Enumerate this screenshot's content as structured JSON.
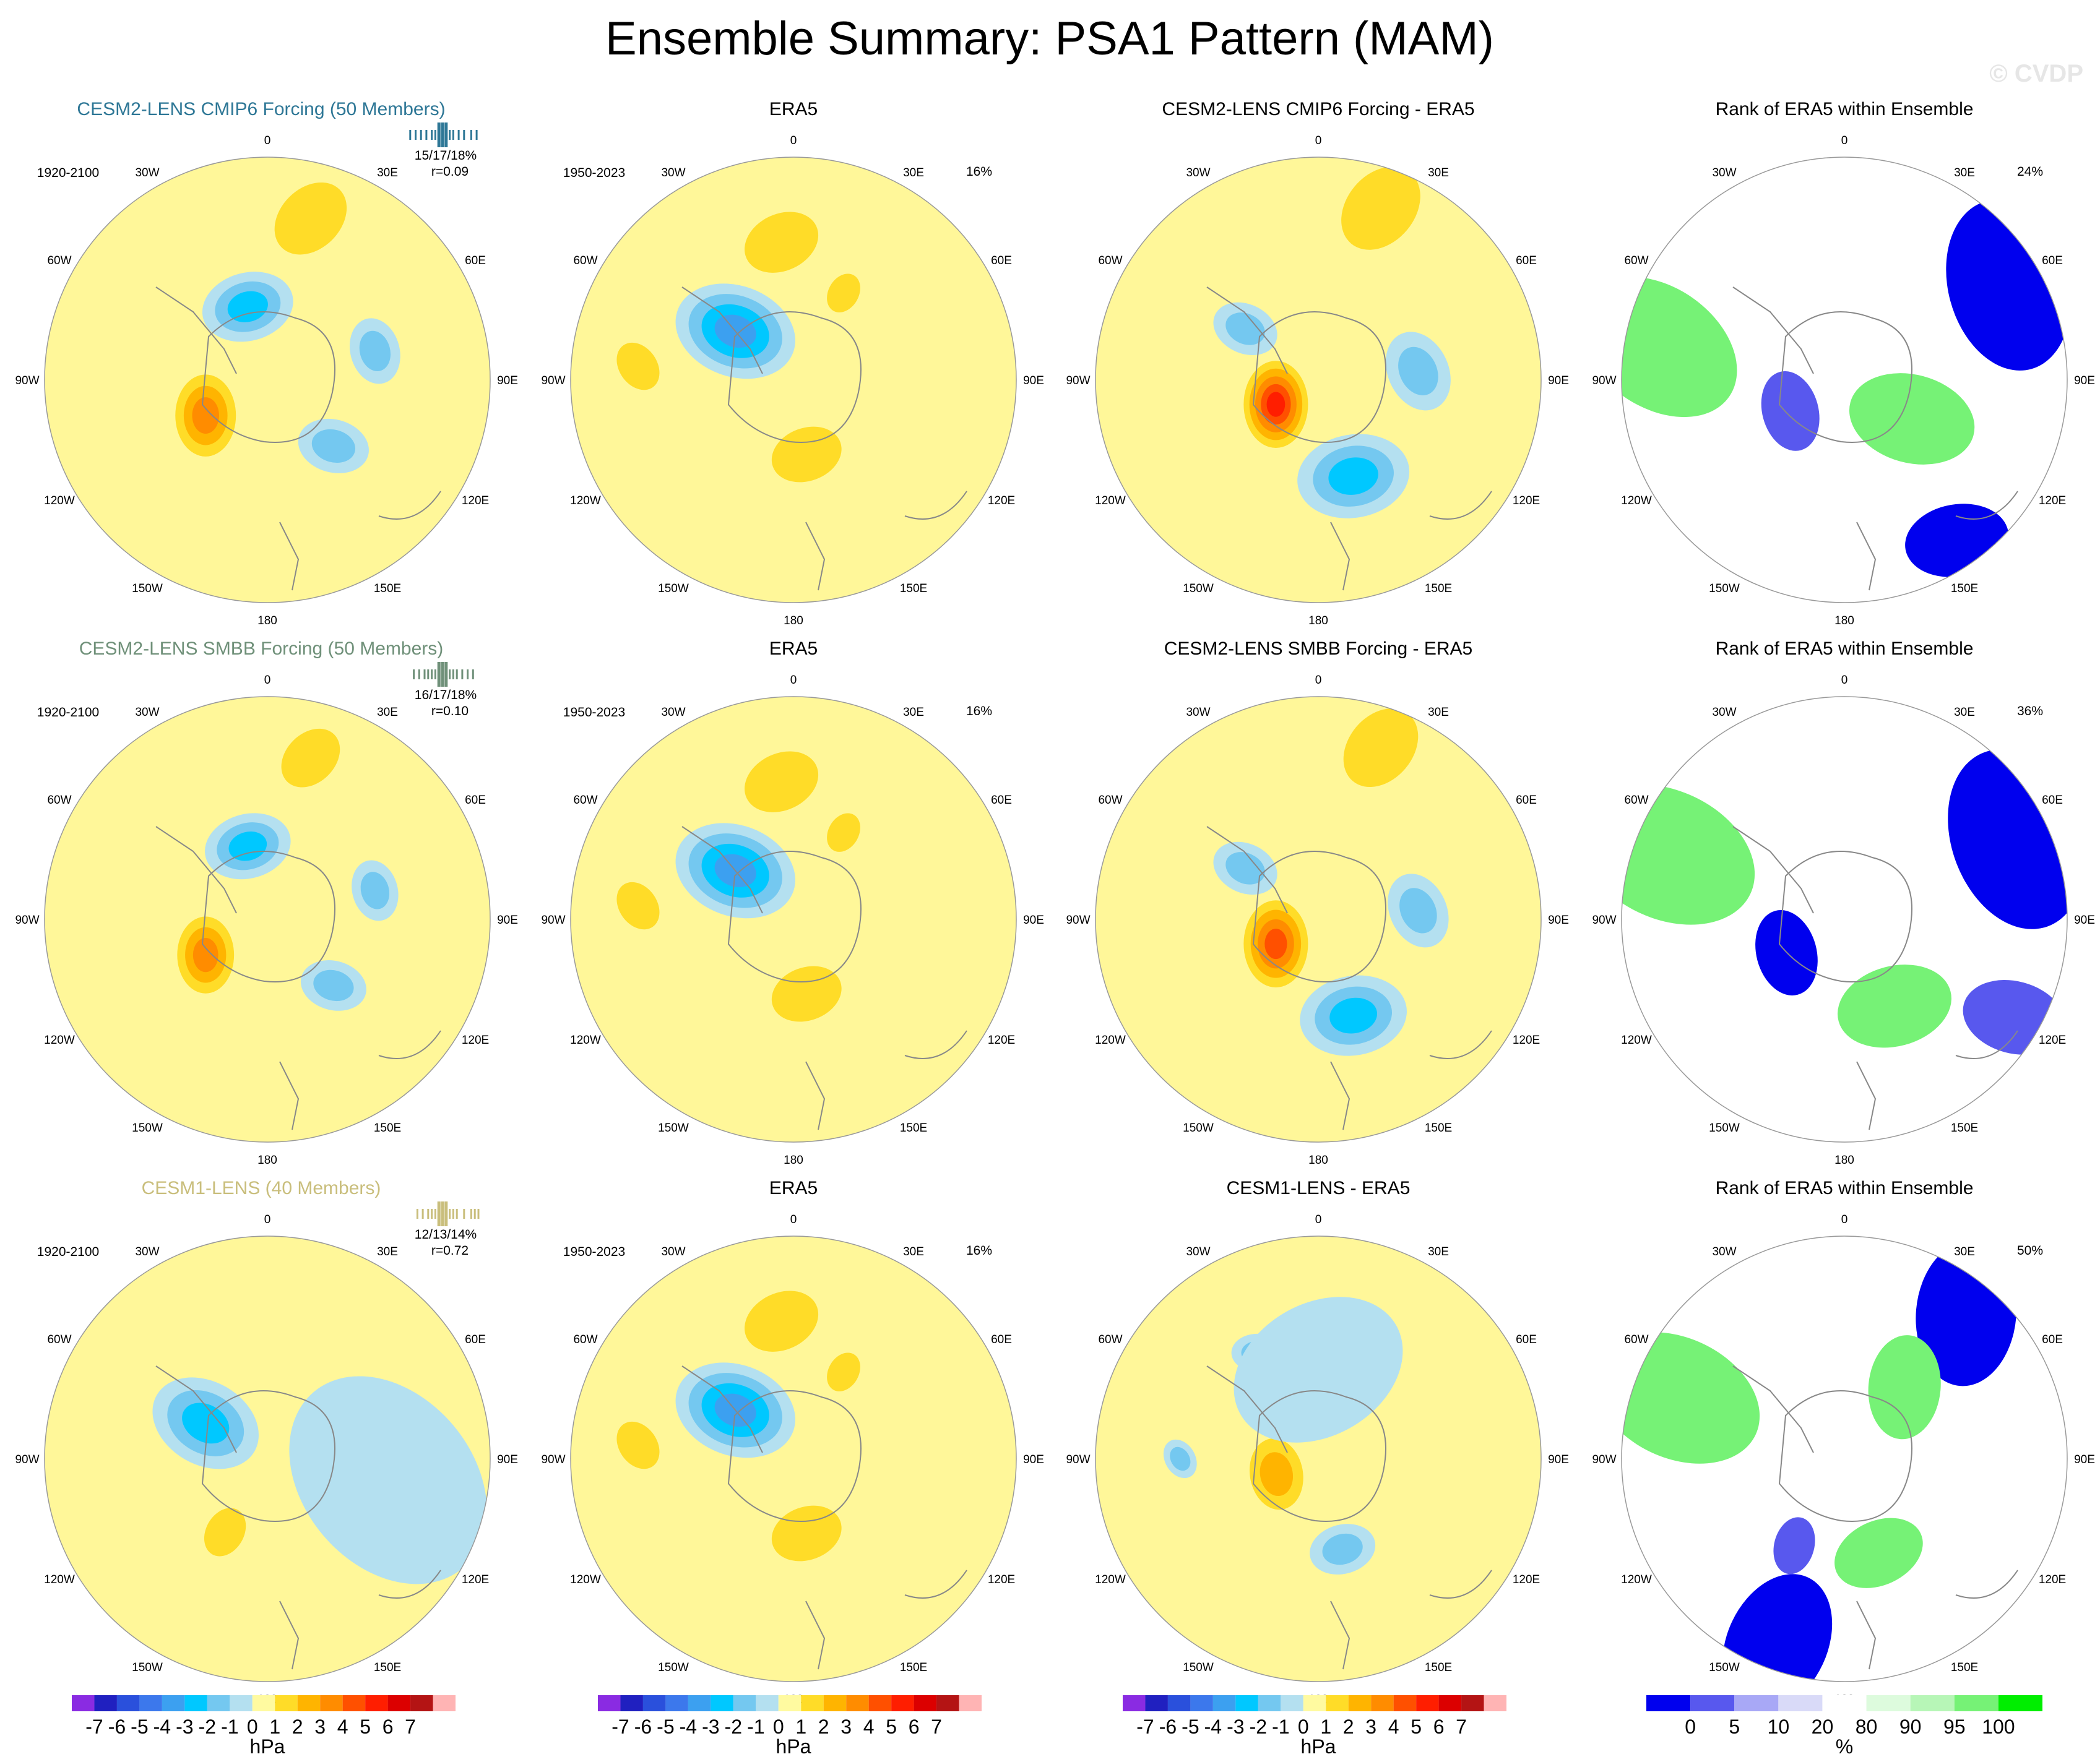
{
  "header": {
    "title": "Ensemble Summary: PSA1 Pattern (MAM)",
    "watermark": "© CVDP"
  },
  "colors": {
    "cmip6_title": "#2e7796",
    "smbb_title": "#6f9079",
    "cesm1_title": "#c9be7c",
    "ocean_base": "#fff799",
    "map_line": "#888888",
    "hpa_palette": [
      "#8a2be2",
      "#2020c0",
      "#2a50dc",
      "#3c78ec",
      "#3ca0f0",
      "#00c8ff",
      "#74c8f0",
      "#b4e0f0",
      "#fffaa0",
      "#ffdc28",
      "#ffb400",
      "#ff8c00",
      "#ff5000",
      "#ff1e00",
      "#dc0000",
      "#b41414",
      "#ffb4b4"
    ],
    "pct_palette": [
      "#0000ee",
      "#5858ee",
      "#a8a8f6",
      "#d9daf8",
      "#ffffff",
      "#ddfbdd",
      "#b7f6b7",
      "#76f276",
      "#00ee00"
    ]
  },
  "chart_data": {
    "type": "map-panel-grid",
    "projection": "south polar stereographic",
    "longitude_labels": [
      "0",
      "30E",
      "60E",
      "90E",
      "120E",
      "150E",
      "180",
      "150W",
      "120W",
      "90W",
      "60W",
      "30W"
    ],
    "rows": [
      {
        "model_title": "CESM2-LENS CMIP6 Forcing (50 Members)",
        "model_years": "1920-2100",
        "model_stats": "15/17/18%",
        "model_r": "r=0.09",
        "model_ticks": [
          -0.9,
          -0.75,
          -0.6,
          -0.45,
          -0.3,
          -0.2,
          -0.1,
          0.0,
          0.1,
          0.2,
          0.3,
          0.45,
          0.6,
          0.8,
          0.95
        ],
        "obs_title": "ERA5",
        "obs_years": "1950-2023",
        "obs_pct": "16%",
        "diff_title": "CESM2-LENS CMIP6 Forcing - ERA5",
        "rank_title": "Rank of ERA5 within Ensemble",
        "rank_pct": "24%",
        "model_blobs": [
          {
            "lon": 45,
            "dist": 0.42,
            "value": -2,
            "size": 0.14
          },
          {
            "lon": 105,
            "dist": 0.5,
            "value": -2,
            "size": 0.13
          },
          {
            "lon": 195,
            "dist": 0.34,
            "value": -3,
            "size": 0.18
          },
          {
            "lon": 300,
            "dist": 0.32,
            "value": 3,
            "size": 0.16
          },
          {
            "lon": 165,
            "dist": 0.75,
            "value": 1,
            "size": 0.16
          }
        ],
        "obs_blobs": [
          {
            "lon": 230,
            "dist": 0.34,
            "value": -4,
            "size": 0.24
          },
          {
            "lon": 10,
            "dist": 0.34,
            "value": 1,
            "size": 0.14
          },
          {
            "lon": 185,
            "dist": 0.62,
            "value": 1,
            "size": 0.15
          },
          {
            "lon": 265,
            "dist": 0.7,
            "value": 1,
            "size": 0.1
          },
          {
            "lon": 150,
            "dist": 0.45,
            "value": 1,
            "size": 0.08
          }
        ],
        "diff_blobs": [
          {
            "lon": 20,
            "dist": 0.46,
            "value": -3,
            "size": 0.22
          },
          {
            "lon": 95,
            "dist": 0.45,
            "value": -2,
            "size": 0.16
          },
          {
            "lon": 300,
            "dist": 0.22,
            "value": 5,
            "size": 0.17
          },
          {
            "lon": 160,
            "dist": 0.82,
            "value": 1,
            "size": 0.18
          },
          {
            "lon": 235,
            "dist": 0.4,
            "value": -2,
            "size": 0.13
          }
        ],
        "rank_blobs": [
          {
            "lon": 60,
            "dist": 0.35,
            "value": 100,
            "size": 0.22
          },
          {
            "lon": 300,
            "dist": 0.28,
            "value": 5,
            "size": 0.14
          },
          {
            "lon": 260,
            "dist": 0.85,
            "value": 100,
            "size": 0.3
          },
          {
            "lon": 120,
            "dist": 0.85,
            "value": 0,
            "size": 0.3
          },
          {
            "lon": 35,
            "dist": 0.88,
            "value": 0,
            "size": 0.18
          }
        ]
      },
      {
        "model_title": "CESM2-LENS SMBB Forcing (50 Members)",
        "model_years": "1920-2100",
        "model_stats": "16/17/18%",
        "model_r": "r=0.10",
        "model_ticks": [
          -0.8,
          -0.65,
          -0.5,
          -0.4,
          -0.3,
          -0.2,
          -0.1,
          0.0,
          0.1,
          0.2,
          0.3,
          0.4,
          0.55,
          0.7,
          0.85
        ],
        "obs_title": "ERA5",
        "obs_years": "1950-2023",
        "obs_pct": "16%",
        "diff_title": "CESM2-LENS SMBB Forcing - ERA5",
        "rank_title": "Rank of ERA5 within Ensemble",
        "rank_pct": "36%",
        "model_blobs": [
          {
            "lon": 45,
            "dist": 0.42,
            "value": -2,
            "size": 0.13
          },
          {
            "lon": 105,
            "dist": 0.5,
            "value": -2,
            "size": 0.12
          },
          {
            "lon": 195,
            "dist": 0.34,
            "value": -3,
            "size": 0.17
          },
          {
            "lon": 300,
            "dist": 0.32,
            "value": 3,
            "size": 0.15
          },
          {
            "lon": 165,
            "dist": 0.75,
            "value": 1,
            "size": 0.13
          }
        ],
        "obs_blobs": [
          {
            "lon": 230,
            "dist": 0.34,
            "value": -4,
            "size": 0.24
          },
          {
            "lon": 10,
            "dist": 0.34,
            "value": 1,
            "size": 0.14
          },
          {
            "lon": 185,
            "dist": 0.62,
            "value": 1,
            "size": 0.15
          },
          {
            "lon": 265,
            "dist": 0.7,
            "value": 1,
            "size": 0.1
          },
          {
            "lon": 150,
            "dist": 0.45,
            "value": 1,
            "size": 0.08
          }
        ],
        "diff_blobs": [
          {
            "lon": 20,
            "dist": 0.46,
            "value": -3,
            "size": 0.21
          },
          {
            "lon": 95,
            "dist": 0.45,
            "value": -2,
            "size": 0.15
          },
          {
            "lon": 300,
            "dist": 0.22,
            "value": 4,
            "size": 0.17
          },
          {
            "lon": 160,
            "dist": 0.82,
            "value": 1,
            "size": 0.17
          },
          {
            "lon": 235,
            "dist": 0.4,
            "value": -2,
            "size": 0.13
          }
        ],
        "rank_blobs": [
          {
            "lon": 30,
            "dist": 0.45,
            "value": 100,
            "size": 0.2
          },
          {
            "lon": 300,
            "dist": 0.3,
            "value": 0,
            "size": 0.15
          },
          {
            "lon": 250,
            "dist": 0.85,
            "value": 100,
            "size": 0.32
          },
          {
            "lon": 115,
            "dist": 0.85,
            "value": 0,
            "size": 0.32
          },
          {
            "lon": 60,
            "dist": 0.88,
            "value": 5,
            "size": 0.18
          }
        ]
      },
      {
        "model_title": "CESM1-LENS (40 Members)",
        "model_years": "1920-2100",
        "model_stats": "12/13/14%",
        "model_r": "r=0.72",
        "model_ticks": [
          -0.7,
          -0.55,
          -0.4,
          -0.3,
          -0.2,
          -0.1,
          0.0,
          0.1,
          0.2,
          0.3,
          0.4,
          0.6,
          0.8,
          0.9,
          1.0
        ],
        "obs_title": "ERA5",
        "obs_years": "1950-2023",
        "obs_pct": "16%",
        "diff_title": "CESM1-LENS - ERA5",
        "rank_title": "Rank of ERA5 within Ensemble",
        "rank_pct": "50%",
        "model_blobs": [
          {
            "lon": 240,
            "dist": 0.32,
            "value": -3,
            "size": 0.22
          },
          {
            "lon": 330,
            "dist": 0.38,
            "value": 1,
            "size": 0.1
          },
          {
            "lon": 80,
            "dist": 0.55,
            "value": -1,
            "size": 0.45
          }
        ],
        "obs_blobs": [
          {
            "lon": 230,
            "dist": 0.34,
            "value": -4,
            "size": 0.24
          },
          {
            "lon": 10,
            "dist": 0.34,
            "value": 1,
            "size": 0.14
          },
          {
            "lon": 185,
            "dist": 0.62,
            "value": 1,
            "size": 0.15
          },
          {
            "lon": 265,
            "dist": 0.7,
            "value": 1,
            "size": 0.1
          },
          {
            "lon": 150,
            "dist": 0.45,
            "value": 1,
            "size": 0.08
          }
        ],
        "diff_blobs": [
          {
            "lon": 15,
            "dist": 0.42,
            "value": -2,
            "size": 0.13
          },
          {
            "lon": 290,
            "dist": 0.2,
            "value": 2,
            "size": 0.14
          },
          {
            "lon": 270,
            "dist": 0.62,
            "value": -2,
            "size": 0.08
          },
          {
            "lon": 210,
            "dist": 0.55,
            "value": -2,
            "size": 0.1
          },
          {
            "lon": 180,
            "dist": 0.4,
            "value": -1,
            "size": 0.35
          }
        ],
        "rank_blobs": [
          {
            "lon": 20,
            "dist": 0.45,
            "value": 100,
            "size": 0.16
          },
          {
            "lon": 340,
            "dist": 0.88,
            "value": 0,
            "size": 0.25
          },
          {
            "lon": 250,
            "dist": 0.8,
            "value": 100,
            "size": 0.3
          },
          {
            "lon": 140,
            "dist": 0.85,
            "value": 0,
            "size": 0.25
          },
          {
            "lon": 140,
            "dist": 0.42,
            "value": 100,
            "size": 0.18
          },
          {
            "lon": 330,
            "dist": 0.45,
            "value": 5,
            "size": 0.1
          }
        ]
      }
    ],
    "colorbar_hpa": {
      "tick_labels": [
        "-7",
        "-6",
        "-5",
        "-4",
        "-3",
        "-2",
        "-1",
        "0",
        "1",
        "2",
        "3",
        "4",
        "5",
        "6",
        "7"
      ],
      "unit": "hPa"
    },
    "colorbar_pct": {
      "tick_labels": [
        "0",
        "5",
        "10",
        "20",
        "80",
        "90",
        "95",
        "100"
      ],
      "unit": "%"
    }
  }
}
